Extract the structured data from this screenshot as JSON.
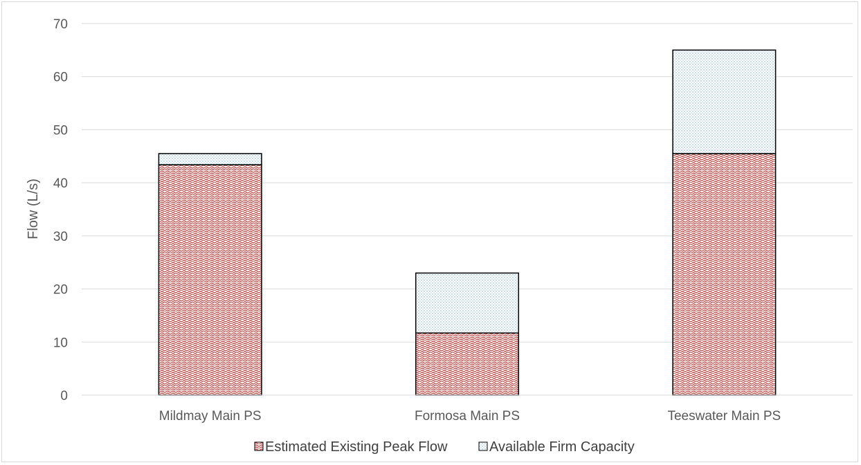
{
  "chart_data": {
    "type": "bar",
    "stacked": true,
    "categories": [
      "Mildmay Main PS",
      "Formosa Main PS",
      "Teeswater Main PS"
    ],
    "series": [
      {
        "name": "Estimated Existing Peak Flow",
        "values": [
          43.4,
          11.7,
          45.5
        ],
        "color": "#c0504d",
        "pattern": "red-wave"
      },
      {
        "name": "Available Firm Capacity",
        "values": [
          2.1,
          11.3,
          19.5
        ],
        "color": "#9dc3e6",
        "pattern": "blue-dots"
      }
    ],
    "title": "",
    "xlabel": "",
    "ylabel": "Flow (L/s)",
    "ylim": [
      0,
      70
    ],
    "yticks": [
      0,
      10,
      20,
      30,
      40,
      50,
      60,
      70
    ],
    "grid": true,
    "legend_position": "bottom"
  }
}
